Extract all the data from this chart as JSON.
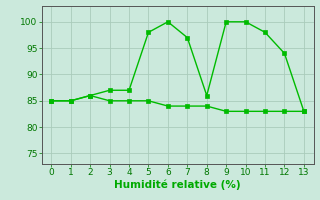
{
  "x": [
    0,
    1,
    2,
    3,
    4,
    5,
    6,
    7,
    8,
    9,
    10,
    11,
    12,
    13
  ],
  "line1_y": [
    85,
    85,
    86,
    87,
    87,
    98,
    100,
    97,
    86,
    100,
    100,
    98,
    94,
    83
  ],
  "line2_y": [
    85,
    85,
    86,
    85,
    85,
    85,
    84,
    84,
    84,
    83,
    83,
    83,
    83,
    83
  ],
  "line_color": "#00BB00",
  "bg_color": "#CBE9DC",
  "grid_color": "#AACCBB",
  "xlabel": "Humidité relative (%)",
  "xlabel_color": "#00AA00",
  "ylim": [
    73,
    103
  ],
  "xlim": [
    -0.5,
    13.5
  ],
  "yticks": [
    75,
    80,
    85,
    90,
    95,
    100
  ],
  "xticks": [
    0,
    1,
    2,
    3,
    4,
    5,
    6,
    7,
    8,
    9,
    10,
    11,
    12,
    13
  ],
  "markersize": 2.5,
  "linewidth": 1.0,
  "xlabel_fontsize": 7.5,
  "tick_fontsize": 6.5,
  "tick_color": "#007700",
  "axis_color": "#555555"
}
